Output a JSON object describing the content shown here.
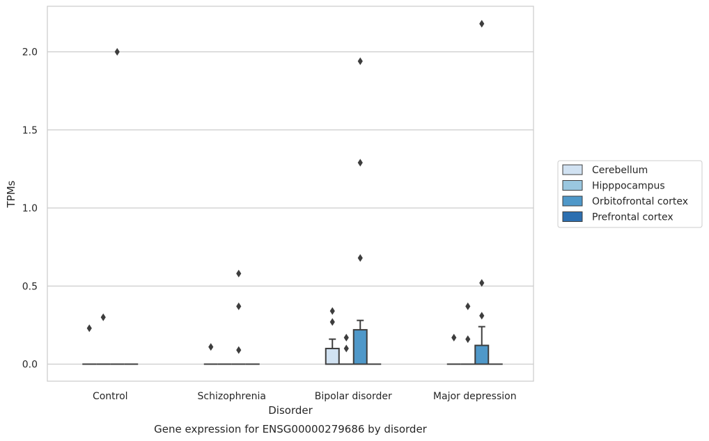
{
  "chart_data": {
    "type": "box",
    "title": "",
    "caption": "Gene expression for ENSG00000279686 by disorder",
    "xlabel": "Disorder",
    "ylabel": "TPMs",
    "ylim": [
      -0.1,
      2.3
    ],
    "yticks": [
      0.0,
      0.5,
      1.0,
      1.5,
      2.0
    ],
    "ytick_labels": [
      "0.0",
      "0.5",
      "1.0",
      "1.5",
      "2.0"
    ],
    "grid": "horizontal",
    "legend_position": "right",
    "categories": [
      "Control",
      "Schizophrenia",
      "Bipolar disorder",
      "Major depression"
    ],
    "series": [
      {
        "name": "Cerebellum",
        "color": "#d1e2f2",
        "boxes": [
          {
            "q1": 0,
            "median": 0,
            "q3": 0,
            "whisker_low": 0,
            "whisker_high": 0,
            "outliers": [
              0.23
            ]
          },
          {
            "q1": 0,
            "median": 0,
            "q3": 0,
            "whisker_low": 0,
            "whisker_high": 0,
            "outliers": [
              0.11
            ]
          },
          {
            "q1": 0,
            "median": 0,
            "q3": 0.1,
            "whisker_low": 0,
            "whisker_high": 0.16,
            "outliers": [
              0.27,
              0.34
            ]
          },
          {
            "q1": 0,
            "median": 0,
            "q3": 0,
            "whisker_low": 0,
            "whisker_high": 0,
            "outliers": [
              0.17
            ]
          }
        ]
      },
      {
        "name": "Hipppocampus",
        "color": "#9ac7e0",
        "boxes": [
          {
            "q1": 0,
            "median": 0,
            "q3": 0,
            "whisker_low": 0,
            "whisker_high": 0,
            "outliers": [
              0.3
            ]
          },
          {
            "q1": 0,
            "median": 0,
            "q3": 0,
            "whisker_low": 0,
            "whisker_high": 0,
            "outliers": []
          },
          {
            "q1": 0,
            "median": 0,
            "q3": 0,
            "whisker_low": 0,
            "whisker_high": 0,
            "outliers": [
              0.1,
              0.17
            ]
          },
          {
            "q1": 0,
            "median": 0,
            "q3": 0,
            "whisker_low": 0,
            "whisker_high": 0,
            "outliers": [
              0.16,
              0.37
            ]
          }
        ]
      },
      {
        "name": "Orbitofrontal cortex",
        "color": "#4f98c9",
        "boxes": [
          {
            "q1": 0,
            "median": 0,
            "q3": 0,
            "whisker_low": 0,
            "whisker_high": 0,
            "outliers": [
              2.0
            ]
          },
          {
            "q1": 0,
            "median": 0,
            "q3": 0,
            "whisker_low": 0,
            "whisker_high": 0,
            "outliers": [
              0.09,
              0.37,
              0.58
            ]
          },
          {
            "q1": 0,
            "median": 0,
            "q3": 0.22,
            "whisker_low": 0,
            "whisker_high": 0.28,
            "outliers": [
              0.68,
              1.29,
              1.94
            ]
          },
          {
            "q1": 0,
            "median": 0,
            "q3": 0.12,
            "whisker_low": 0,
            "whisker_high": 0.24,
            "outliers": [
              0.31,
              0.52,
              2.18
            ]
          }
        ]
      },
      {
        "name": "Prefrontal cortex",
        "color": "#2d6fb0",
        "boxes": [
          {
            "q1": 0,
            "median": 0,
            "q3": 0,
            "whisker_low": 0,
            "whisker_high": 0,
            "outliers": []
          },
          {
            "q1": 0,
            "median": 0,
            "q3": 0,
            "whisker_low": 0,
            "whisker_high": 0,
            "outliers": []
          },
          {
            "q1": 0,
            "median": 0,
            "q3": 0,
            "whisker_low": 0,
            "whisker_high": 0,
            "outliers": []
          },
          {
            "q1": 0,
            "median": 0,
            "q3": 0,
            "whisker_low": 0,
            "whisker_high": 0,
            "outliers": []
          }
        ]
      }
    ]
  }
}
